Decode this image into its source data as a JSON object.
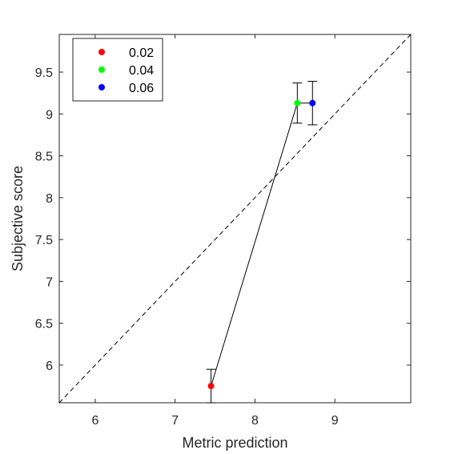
{
  "chart_data": {
    "type": "scatter",
    "xlabel": "Metric prediction",
    "ylabel": "Subjective score",
    "xlim": [
      5.55,
      9.95
    ],
    "ylim": [
      5.55,
      9.95
    ],
    "xticks": [
      6,
      7,
      8,
      9
    ],
    "yticks": [
      6,
      6.5,
      7,
      7.5,
      8,
      8.5,
      9,
      9.5
    ],
    "xtick_labels": [
      "6",
      "7",
      "8",
      "9"
    ],
    "ytick_labels": [
      "6",
      "6.5",
      "7",
      "7.5",
      "8",
      "8.5",
      "9",
      "9.5"
    ],
    "grid": false,
    "legend_position": "top-left",
    "reference_line": {
      "style": "dashed",
      "from": [
        5.55,
        5.55
      ],
      "to": [
        9.95,
        9.95
      ]
    },
    "connecting_line": true,
    "series": [
      {
        "name": "0.02",
        "x": 7.45,
        "y": 5.75,
        "err_low": 5.55,
        "err_high": 5.95,
        "color": "#ff0000"
      },
      {
        "name": "0.04",
        "x": 8.53,
        "y": 9.13,
        "err_low": 8.89,
        "err_high": 9.37,
        "color": "#00ff00"
      },
      {
        "name": "0.06",
        "x": 8.72,
        "y": 9.13,
        "err_low": 8.87,
        "err_high": 9.39,
        "color": "#0000ff"
      }
    ]
  }
}
